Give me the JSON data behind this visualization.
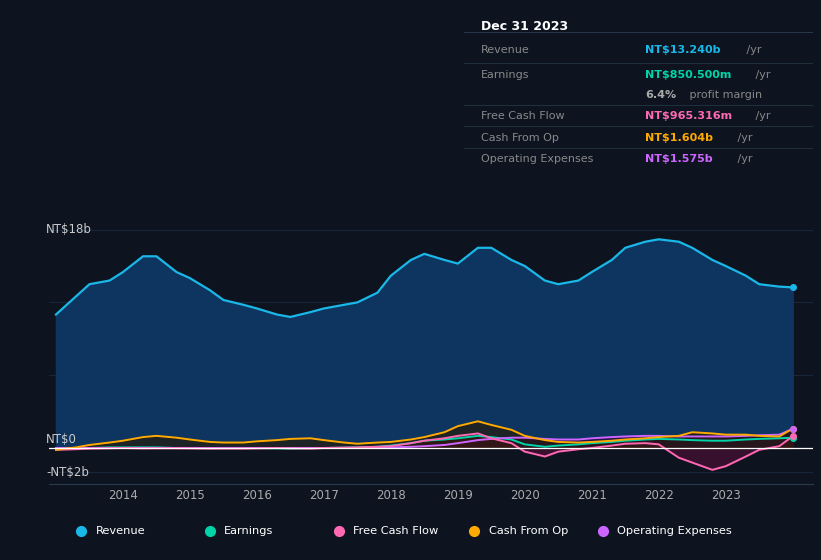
{
  "background_color": "#0d1420",
  "plot_bg_color": "#0d1420",
  "grid_color": "#1a2a40",
  "revenue_color": "#1ab8e8",
  "revenue_fill_color": "#0d3560",
  "earnings_color": "#00d4a8",
  "earnings_fill_color": "#0a2f2f",
  "fcf_color": "#ff69b4",
  "fcf_fill_color": "#4a0f35",
  "cashfromop_color": "#ffaa00",
  "cashfromop_fill_color": "#2a1a00",
  "opex_color": "#cc66ff",
  "opex_fill_color": "#2a0f4a",
  "infobox_bg": "#090e18",
  "infobox_border": "#2a3a4a",
  "legend_bg": "#111827",
  "title_date": "Dec 31 2023",
  "info_rows": [
    {
      "label": "Revenue",
      "value": "NT$13.240b",
      "value_color": "#1ab8e8",
      "suffix": " /yr"
    },
    {
      "label": "Earnings",
      "value": "NT$850.500m",
      "value_color": "#00d4a8",
      "suffix": " /yr"
    },
    {
      "label": "",
      "value": "6.4%",
      "value_color": "#aaaaaa",
      "suffix": " profit margin"
    },
    {
      "label": "Free Cash Flow",
      "value": "NT$965.316m",
      "value_color": "#ff69b4",
      "suffix": " /yr"
    },
    {
      "label": "Cash From Op",
      "value": "NT$1.604b",
      "value_color": "#ffaa00",
      "suffix": " /yr"
    },
    {
      "label": "Operating Expenses",
      "value": "NT$1.575b",
      "value_color": "#cc66ff",
      "suffix": " /yr"
    }
  ],
  "years": [
    2013.0,
    2013.3,
    2013.5,
    2013.8,
    2014.0,
    2014.3,
    2014.5,
    2014.8,
    2015.0,
    2015.3,
    2015.5,
    2015.8,
    2016.0,
    2016.3,
    2016.5,
    2016.8,
    2017.0,
    2017.3,
    2017.5,
    2017.8,
    2018.0,
    2018.3,
    2018.5,
    2018.8,
    2019.0,
    2019.3,
    2019.5,
    2019.8,
    2020.0,
    2020.3,
    2020.5,
    2020.8,
    2021.0,
    2021.3,
    2021.5,
    2021.8,
    2022.0,
    2022.3,
    2022.5,
    2022.8,
    2023.0,
    2023.3,
    2023.5,
    2023.8,
    2024.0
  ],
  "revenue": [
    11.0,
    12.5,
    13.5,
    13.8,
    14.5,
    15.8,
    15.8,
    14.5,
    14.0,
    13.0,
    12.2,
    11.8,
    11.5,
    11.0,
    10.8,
    11.2,
    11.5,
    11.8,
    12.0,
    12.8,
    14.2,
    15.5,
    16.0,
    15.5,
    15.2,
    16.5,
    16.5,
    15.5,
    15.0,
    13.8,
    13.5,
    13.8,
    14.5,
    15.5,
    16.5,
    17.0,
    17.2,
    17.0,
    16.5,
    15.5,
    15.0,
    14.2,
    13.5,
    13.3,
    13.24
  ],
  "earnings": [
    -0.05,
    0.0,
    0.0,
    0.05,
    0.05,
    0.05,
    0.05,
    0.0,
    0.0,
    -0.02,
    0.0,
    0.0,
    0.0,
    -0.03,
    -0.05,
    -0.02,
    0.0,
    0.03,
    0.05,
    0.1,
    0.2,
    0.4,
    0.6,
    0.7,
    0.8,
    1.0,
    0.9,
    0.7,
    0.3,
    0.1,
    0.2,
    0.3,
    0.4,
    0.5,
    0.6,
    0.7,
    0.75,
    0.7,
    0.65,
    0.6,
    0.6,
    0.7,
    0.75,
    0.8,
    0.85
  ],
  "fcf": [
    -0.15,
    -0.1,
    -0.05,
    -0.02,
    0.0,
    -0.03,
    -0.02,
    -0.02,
    -0.03,
    -0.05,
    -0.05,
    -0.05,
    -0.03,
    0.0,
    -0.03,
    -0.05,
    0.0,
    0.03,
    0.05,
    0.1,
    0.15,
    0.4,
    0.6,
    0.8,
    1.0,
    1.2,
    0.8,
    0.4,
    -0.3,
    -0.7,
    -0.3,
    -0.1,
    0.0,
    0.2,
    0.35,
    0.4,
    0.3,
    -0.8,
    -1.2,
    -1.8,
    -1.5,
    -0.7,
    -0.15,
    0.15,
    0.97
  ],
  "cashfromop": [
    -0.15,
    0.05,
    0.25,
    0.45,
    0.6,
    0.9,
    1.0,
    0.85,
    0.7,
    0.5,
    0.45,
    0.45,
    0.55,
    0.65,
    0.75,
    0.8,
    0.65,
    0.45,
    0.35,
    0.45,
    0.5,
    0.7,
    0.9,
    1.3,
    1.8,
    2.2,
    1.9,
    1.5,
    1.0,
    0.65,
    0.5,
    0.45,
    0.5,
    0.6,
    0.7,
    0.8,
    0.9,
    1.0,
    1.3,
    1.2,
    1.1,
    1.1,
    1.0,
    0.95,
    1.6
  ],
  "opex": [
    0.0,
    0.0,
    0.0,
    0.0,
    0.0,
    0.0,
    0.0,
    0.0,
    0.0,
    0.0,
    0.0,
    0.0,
    0.0,
    0.0,
    0.0,
    0.0,
    0.0,
    0.0,
    0.0,
    0.0,
    0.05,
    0.1,
    0.15,
    0.25,
    0.4,
    0.65,
    0.75,
    0.85,
    0.85,
    0.75,
    0.7,
    0.7,
    0.8,
    0.9,
    0.95,
    1.0,
    1.0,
    0.95,
    0.95,
    0.95,
    0.95,
    1.0,
    1.05,
    1.1,
    1.575
  ],
  "xlim": [
    2012.9,
    2024.3
  ],
  "ylim": [
    -3.0,
    21.0
  ],
  "xtick_years": [
    2014,
    2015,
    2016,
    2017,
    2018,
    2019,
    2020,
    2021,
    2022,
    2023
  ],
  "legend_items": [
    {
      "label": "Revenue",
      "color": "#1ab8e8"
    },
    {
      "label": "Earnings",
      "color": "#00d4a8"
    },
    {
      "label": "Free Cash Flow",
      "color": "#ff69b4"
    },
    {
      "label": "Cash From Op",
      "color": "#ffaa00"
    },
    {
      "label": "Operating Expenses",
      "color": "#cc66ff"
    }
  ]
}
